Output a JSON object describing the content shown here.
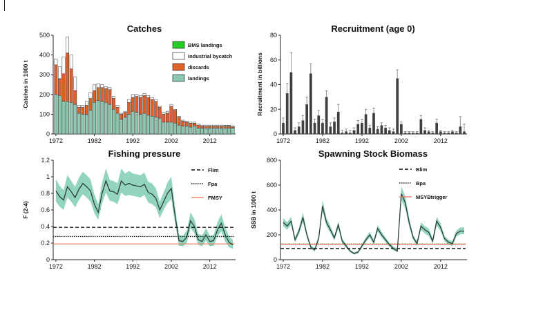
{
  "colors": {
    "bms": "#22cc22",
    "bycatch": "#ffffff",
    "discards": "#e0602a",
    "landings": "#8cc8b0",
    "recruitment_bar": "#404040",
    "band": "#93d4c1",
    "line": "#2f3e37",
    "ref_line": "#111111",
    "fmsy": "#e8705a"
  },
  "chart_data": [
    {
      "id": "catches",
      "type": "bar",
      "title": "Catches",
      "ylabel": "Catches in 1000 t",
      "ylim": [
        0,
        500
      ],
      "yticks": [
        0,
        100,
        200,
        300,
        400,
        500
      ],
      "xticks": [
        1972,
        1982,
        1992,
        2002,
        2012
      ],
      "legend": "top-right",
      "x": [
        1972,
        1973,
        1974,
        1975,
        1976,
        1977,
        1978,
        1979,
        1980,
        1981,
        1982,
        1983,
        1984,
        1985,
        1986,
        1987,
        1988,
        1989,
        1990,
        1991,
        1992,
        1993,
        1994,
        1995,
        1996,
        1997,
        1998,
        1999,
        2000,
        2001,
        2002,
        2003,
        2004,
        2005,
        2006,
        2007,
        2008,
        2009,
        2010,
        2011,
        2012,
        2013,
        2014,
        2015,
        2016,
        2017,
        2018
      ],
      "series": [
        {
          "name": "landings",
          "values": [
            200,
            195,
            165,
            165,
            160,
            150,
            105,
            100,
            100,
            120,
            160,
            170,
            165,
            160,
            150,
            125,
            105,
            75,
            85,
            100,
            115,
            110,
            100,
            105,
            95,
            90,
            85,
            80,
            60,
            60,
            60,
            55,
            45,
            40,
            40,
            35,
            40,
            30,
            30,
            30,
            30,
            30,
            30,
            30,
            30,
            30,
            30
          ]
        },
        {
          "name": "discards",
          "values": [
            150,
            85,
            140,
            245,
            170,
            70,
            30,
            35,
            45,
            60,
            60,
            65,
            70,
            70,
            75,
            55,
            30,
            25,
            25,
            60,
            70,
            80,
            85,
            90,
            90,
            85,
            80,
            55,
            40,
            45,
            80,
            65,
            40,
            25,
            20,
            20,
            15,
            15,
            10,
            10,
            10,
            10,
            10,
            10,
            8,
            8,
            5
          ]
        },
        {
          "name": "industrial bycatch",
          "values": [
            30,
            60,
            85,
            80,
            70,
            70,
            10,
            10,
            20,
            30,
            30,
            20,
            15,
            10,
            10,
            10,
            10,
            5,
            5,
            15,
            15,
            10,
            10,
            10,
            10,
            10,
            10,
            5,
            10,
            10,
            10,
            5,
            5,
            5,
            5,
            5,
            5,
            5,
            5,
            5,
            5,
            5,
            5,
            5,
            5,
            5,
            5
          ]
        },
        {
          "name": "BMS landings",
          "values": [
            0,
            0,
            0,
            0,
            0,
            0,
            0,
            0,
            0,
            0,
            0,
            0,
            0,
            0,
            0,
            0,
            0,
            0,
            0,
            0,
            0,
            0,
            0,
            0,
            0,
            0,
            0,
            0,
            0,
            0,
            0,
            0,
            0,
            0,
            0,
            0,
            0,
            0,
            0,
            0,
            0,
            0,
            0,
            0,
            1,
            1,
            1
          ]
        }
      ]
    },
    {
      "id": "recruitment",
      "type": "bar",
      "title": "Recruitment (age 0)",
      "ylabel": "Recruitment in billions",
      "ylim": [
        0,
        80
      ],
      "yticks": [
        0,
        20,
        40,
        60,
        80
      ],
      "xticks": [
        1972,
        1982,
        1992,
        2002,
        2012
      ],
      "x": [
        1972,
        1973,
        1974,
        1975,
        1976,
        1977,
        1978,
        1979,
        1980,
        1981,
        1982,
        1983,
        1984,
        1985,
        1986,
        1987,
        1988,
        1989,
        1990,
        1991,
        1992,
        1993,
        1994,
        1995,
        1996,
        1997,
        1998,
        1999,
        2000,
        2001,
        2002,
        2003,
        2004,
        2005,
        2006,
        2007,
        2008,
        2009,
        2010,
        2011,
        2012,
        2013,
        2014,
        2015,
        2016,
        2017,
        2018
      ],
      "values": [
        9,
        33,
        50,
        3,
        6,
        11,
        24,
        49,
        9,
        15,
        9,
        30,
        6,
        10,
        18,
        1,
        2,
        1,
        3,
        8,
        9,
        16,
        5,
        17,
        4,
        7,
        5,
        3,
        2,
        45,
        8,
        1,
        1,
        1,
        1,
        12,
        3,
        2,
        1,
        9,
        2,
        1,
        1,
        2,
        1,
        6,
        2
      ],
      "errors": [
        4,
        8,
        16,
        2,
        3,
        4,
        6,
        8,
        3,
        4,
        3,
        5,
        3,
        3,
        6,
        2,
        2,
        2,
        2,
        3,
        3,
        4,
        2,
        4,
        2,
        2,
        2,
        2,
        2,
        7,
        2,
        1,
        1,
        1,
        1,
        3,
        2,
        1,
        1,
        3,
        1,
        1,
        1,
        1,
        1,
        8,
        6
      ]
    },
    {
      "id": "fishing_pressure",
      "type": "line",
      "title": "Fishing pressure",
      "ylabel": "F (2-4)",
      "ylim": [
        0,
        1.2
      ],
      "yticks": [
        0,
        0.2,
        0.4,
        0.6,
        0.8,
        1,
        1.2
      ],
      "yticklabels": [
        "0",
        "0.2",
        "0.4",
        "0.6",
        "0.8",
        "1",
        "1.2"
      ],
      "xticks": [
        1972,
        1982,
        1992,
        2002,
        2012
      ],
      "legend": "top-right",
      "x": [
        1972,
        1973,
        1974,
        1975,
        1976,
        1977,
        1978,
        1979,
        1980,
        1981,
        1982,
        1983,
        1984,
        1985,
        1986,
        1987,
        1988,
        1989,
        1990,
        1991,
        1992,
        1993,
        1994,
        1995,
        1996,
        1997,
        1998,
        1999,
        2000,
        2001,
        2002,
        2003,
        2004,
        2005,
        2006,
        2007,
        2008,
        2009,
        2010,
        2011,
        2012,
        2013,
        2014,
        2015,
        2016,
        2017,
        2018
      ],
      "values": [
        0.83,
        0.76,
        0.72,
        0.88,
        0.82,
        0.75,
        0.85,
        0.92,
        0.88,
        0.83,
        0.67,
        0.57,
        0.8,
        0.95,
        0.83,
        0.82,
        0.79,
        0.95,
        0.9,
        0.92,
        0.9,
        0.89,
        0.88,
        0.91,
        0.81,
        0.79,
        0.74,
        0.6,
        0.7,
        0.8,
        0.86,
        0.52,
        0.23,
        0.22,
        0.27,
        0.47,
        0.4,
        0.24,
        0.22,
        0.3,
        0.22,
        0.23,
        0.36,
        0.44,
        0.3,
        0.21,
        0.18
      ],
      "lower": [
        0.7,
        0.64,
        0.6,
        0.75,
        0.7,
        0.63,
        0.72,
        0.79,
        0.75,
        0.7,
        0.56,
        0.48,
        0.68,
        0.81,
        0.71,
        0.7,
        0.67,
        0.81,
        0.77,
        0.78,
        0.77,
        0.76,
        0.75,
        0.78,
        0.69,
        0.67,
        0.63,
        0.5,
        0.6,
        0.68,
        0.73,
        0.43,
        0.17,
        0.16,
        0.2,
        0.38,
        0.32,
        0.18,
        0.16,
        0.23,
        0.16,
        0.17,
        0.28,
        0.34,
        0.22,
        0.15,
        0.13
      ],
      "upper": [
        0.97,
        0.89,
        0.84,
        1.02,
        0.95,
        0.88,
        0.99,
        1.06,
        1.02,
        0.97,
        0.79,
        0.67,
        0.93,
        1.1,
        0.96,
        0.95,
        0.92,
        1.1,
        1.04,
        1.07,
        1.04,
        1.03,
        1.02,
        1.05,
        0.94,
        0.92,
        0.86,
        0.7,
        0.81,
        0.93,
        1.0,
        0.62,
        0.3,
        0.29,
        0.35,
        0.57,
        0.49,
        0.31,
        0.29,
        0.38,
        0.29,
        0.3,
        0.45,
        0.55,
        0.39,
        0.28,
        0.24
      ],
      "reference_lines": [
        {
          "name": "Flim",
          "value": 0.39,
          "style": "dashed"
        },
        {
          "name": "Fpa",
          "value": 0.28,
          "style": "dotted"
        },
        {
          "name": "FMSY",
          "value": 0.19,
          "style": "solid"
        }
      ]
    },
    {
      "id": "ssb",
      "type": "line",
      "title": "Spawning Stock Biomass",
      "ylabel": "SSB in 1000 t",
      "ylim": [
        0,
        800
      ],
      "yticks": [
        0,
        200,
        400,
        600,
        800
      ],
      "xticks": [
        1972,
        1982,
        1992,
        2002,
        2012
      ],
      "legend": "top-right",
      "x": [
        1972,
        1973,
        1974,
        1975,
        1976,
        1977,
        1978,
        1979,
        1980,
        1981,
        1982,
        1983,
        1984,
        1985,
        1986,
        1987,
        1988,
        1989,
        1990,
        1991,
        1992,
        1993,
        1994,
        1995,
        1996,
        1997,
        1998,
        1999,
        2000,
        2001,
        2002,
        2003,
        2004,
        2005,
        2006,
        2007,
        2008,
        2009,
        2010,
        2011,
        2012,
        2013,
        2014,
        2015,
        2016,
        2017,
        2018
      ],
      "values": [
        300,
        270,
        310,
        160,
        230,
        340,
        200,
        100,
        80,
        170,
        430,
        300,
        240,
        175,
        280,
        150,
        110,
        70,
        50,
        60,
        110,
        160,
        200,
        140,
        250,
        200,
        160,
        120,
        90,
        70,
        530,
        460,
        300,
        180,
        130,
        270,
        240,
        220,
        150,
        310,
        260,
        170,
        140,
        130,
        210,
        230,
        230
      ],
      "lower": [
        270,
        240,
        280,
        140,
        205,
        305,
        180,
        85,
        65,
        150,
        390,
        270,
        215,
        155,
        250,
        130,
        95,
        60,
        40,
        50,
        95,
        140,
        180,
        120,
        225,
        180,
        140,
        105,
        75,
        60,
        480,
        410,
        265,
        160,
        110,
        240,
        210,
        190,
        130,
        275,
        230,
        150,
        120,
        110,
        185,
        205,
        205
      ],
      "upper": [
        335,
        300,
        345,
        180,
        255,
        380,
        225,
        115,
        95,
        195,
        480,
        335,
        270,
        195,
        310,
        170,
        125,
        80,
        60,
        70,
        125,
        180,
        225,
        160,
        280,
        225,
        180,
        135,
        105,
        85,
        590,
        510,
        335,
        200,
        150,
        300,
        270,
        250,
        170,
        345,
        290,
        190,
        160,
        150,
        235,
        260,
        260
      ],
      "reference_lines": [
        {
          "name": "Blim",
          "value": 90,
          "style": "dashed"
        },
        {
          "name": "Bpa",
          "value": 125,
          "style": "dotted"
        },
        {
          "name": "MSYBtrigger",
          "value": 125,
          "style": "solid"
        }
      ]
    }
  ]
}
